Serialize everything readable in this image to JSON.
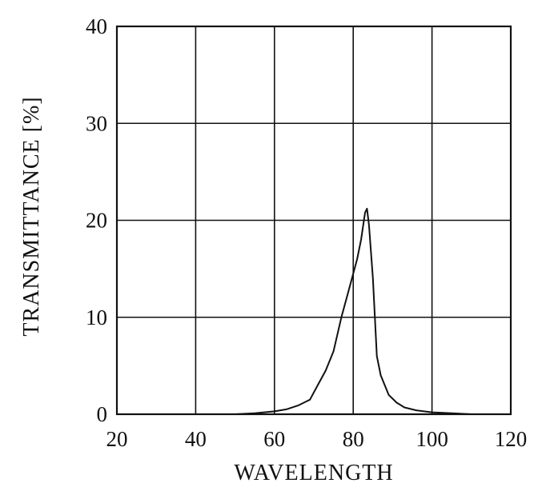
{
  "chart_data": {
    "type": "line",
    "title": "",
    "xlabel": "WAVELENGTH",
    "ylabel": "TRANSMITTANCE [%]",
    "xlim": [
      20,
      120
    ],
    "ylim": [
      0,
      40
    ],
    "x_ticks": [
      "20",
      "40",
      "60",
      "80",
      "100",
      "120"
    ],
    "y_ticks": [
      "0",
      "10",
      "20",
      "30",
      "40"
    ],
    "grid": true,
    "legend": "none",
    "line_color": "#111111",
    "series": [
      {
        "x": [
          40,
          50,
          55,
          60,
          63,
          66,
          69,
          71,
          73,
          75,
          77,
          79,
          81,
          82,
          83,
          83.5,
          84,
          85,
          86,
          87,
          89,
          91,
          93,
          96,
          100,
          105,
          110
        ],
        "y": [
          0,
          0,
          0.1,
          0.3,
          0.5,
          0.9,
          1.5,
          3,
          4.5,
          6.5,
          10,
          13,
          16,
          18,
          20.8,
          21.2,
          19.5,
          14,
          6,
          4,
          2,
          1.2,
          0.7,
          0.4,
          0.2,
          0.1,
          0
        ]
      }
    ]
  }
}
